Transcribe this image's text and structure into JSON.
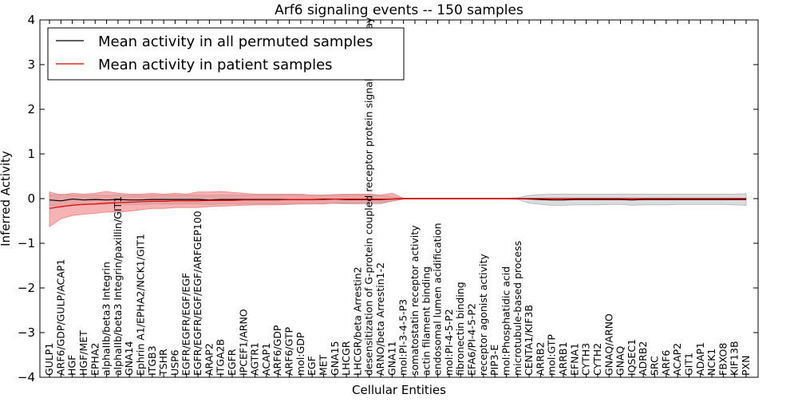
{
  "chart_data": {
    "type": "line",
    "title": "Arf6 signaling events -- 150 samples",
    "xlabel": "Cellular Entities",
    "ylabel": "Inferred Activity",
    "ylim": [
      -4,
      4
    ],
    "yticks": [
      -4,
      -3,
      -2,
      -1,
      0,
      1,
      2,
      3,
      4
    ],
    "ytick_labels": [
      "−4",
      "−3",
      "−2",
      "−1",
      "0",
      "1",
      "2",
      "3",
      "4"
    ],
    "grid": false,
    "legend_position": "top-left",
    "categories": [
      "GULP1",
      "ARF6/GDP/GULP/ACAP1",
      "HGF",
      "HGF/MET",
      "EPHA2",
      "alphaIIb/beta3 Integrin",
      "alphaIIb/beta3 Integrin/paxillin/GIT1",
      "GNA14",
      "Ephrin A1/EPHA2/NCK1/GIT1",
      "ITGB3",
      "TSHR",
      "USP6",
      "EGFR/EGFR/EGF/EGF",
      "EGFR/EGFR/EGF/EGF/ARFGEP100",
      "ARAP2",
      "ITGA2B",
      "EGFR",
      "IPCEF1/ARNO",
      "AGTR1",
      "ACAP1",
      "ARF6/GDP",
      "ARF6/GTP",
      "mol:GDP",
      "EGF",
      "MET",
      "GNA15",
      "LHCGR",
      "LHCGR/beta Arrestin2",
      "desensitization of G-protein coupled receptor protein signaling pathway",
      "ARNO/beta Arrestin1-2",
      "GNA11",
      "mol:PI-3-4-5-P3",
      "somatostatin receptor activity",
      "actin filament binding",
      "endosomal lumen acidification",
      "mol:PI-4-5-P2",
      "fibronectin binding",
      "EFA6/PI-4-5-P2",
      "receptor agonist activity",
      "PIP3-E",
      "mol:Phosphatidic acid",
      "microtubule-based process",
      "CENTA1/KIF3B",
      "ARRB2",
      "mol:GTP",
      "ARRB1",
      "EFNA1",
      "CYTH3",
      "CYTH2",
      "GNAQ/ARNO",
      "GNAQ",
      "IQSEC1",
      "ADRB2",
      "SRC",
      "ARF6",
      "ACAP2",
      "GIT1",
      "ADAP1",
      "NCK1",
      "FBXO8",
      "KIF13B",
      "PXN"
    ],
    "series": [
      {
        "name": "Mean activity in all permuted samples",
        "color": "#000000",
        "band_color": "#b0b0b0",
        "values": [
          -0.03,
          -0.05,
          -0.01,
          -0.03,
          -0.02,
          -0.03,
          -0.02,
          -0.03,
          -0.03,
          -0.02,
          -0.02,
          -0.02,
          -0.02,
          -0.02,
          -0.03,
          -0.02,
          -0.02,
          -0.02,
          -0.02,
          -0.02,
          -0.02,
          -0.02,
          -0.02,
          -0.02,
          -0.01,
          -0.01,
          -0.02,
          -0.02,
          -0.02,
          -0.02,
          -0.01,
          0.0,
          0.0,
          0.0,
          0.0,
          0.0,
          0.0,
          0.0,
          0.0,
          0.0,
          0.0,
          0.0,
          -0.01,
          -0.02,
          -0.03,
          -0.03,
          -0.02,
          -0.02,
          -0.02,
          -0.02,
          -0.02,
          -0.03,
          -0.02,
          -0.02,
          -0.02,
          -0.02,
          -0.02,
          -0.02,
          -0.02,
          -0.02,
          -0.02,
          -0.02
        ],
        "lower": [
          -0.14,
          -0.2,
          -0.12,
          -0.13,
          -0.13,
          -0.13,
          -0.12,
          -0.13,
          -0.13,
          -0.12,
          -0.12,
          -0.12,
          -0.12,
          -0.12,
          -0.13,
          -0.12,
          -0.12,
          -0.12,
          -0.12,
          -0.12,
          -0.12,
          -0.12,
          -0.12,
          -0.12,
          -0.11,
          -0.11,
          -0.12,
          -0.12,
          -0.12,
          -0.12,
          -0.05,
          -0.01,
          -0.01,
          -0.01,
          -0.01,
          -0.01,
          -0.01,
          -0.01,
          -0.01,
          -0.01,
          -0.01,
          -0.02,
          -0.1,
          -0.13,
          -0.15,
          -0.15,
          -0.14,
          -0.14,
          -0.14,
          -0.13,
          -0.13,
          -0.15,
          -0.14,
          -0.14,
          -0.14,
          -0.13,
          -0.13,
          -0.13,
          -0.13,
          -0.13,
          -0.14,
          -0.15
        ],
        "upper": [
          0.08,
          0.1,
          0.08,
          0.07,
          0.08,
          0.07,
          0.08,
          0.07,
          0.07,
          0.08,
          0.08,
          0.08,
          0.08,
          0.08,
          0.07,
          0.08,
          0.08,
          0.08,
          0.08,
          0.08,
          0.08,
          0.08,
          0.08,
          0.08,
          0.08,
          0.08,
          0.08,
          0.08,
          0.08,
          0.08,
          0.03,
          0.01,
          0.01,
          0.01,
          0.01,
          0.01,
          0.01,
          0.01,
          0.01,
          0.01,
          0.01,
          0.02,
          0.07,
          0.09,
          0.1,
          0.1,
          0.1,
          0.1,
          0.1,
          0.1,
          0.1,
          0.1,
          0.1,
          0.1,
          0.1,
          0.1,
          0.1,
          0.1,
          0.1,
          0.1,
          0.1,
          0.11
        ]
      },
      {
        "name": "Mean activity in patient samples",
        "color": "#e00000",
        "band_color": "#f08080",
        "values": [
          -0.22,
          -0.18,
          -0.15,
          -0.13,
          -0.12,
          -0.1,
          -0.09,
          -0.08,
          -0.07,
          -0.06,
          -0.06,
          -0.05,
          -0.05,
          -0.05,
          -0.04,
          -0.04,
          -0.04,
          -0.03,
          -0.03,
          -0.03,
          -0.03,
          -0.02,
          -0.02,
          -0.02,
          -0.02,
          -0.01,
          -0.01,
          -0.01,
          -0.01,
          -0.01,
          -0.01,
          0.0,
          0.0,
          0.0,
          0.0,
          0.0,
          0.0,
          0.0,
          0.0,
          0.0,
          0.0,
          0.0,
          0.0,
          0.0,
          0.0,
          0.0,
          0.0,
          0.0,
          0.0,
          0.0,
          0.0,
          0.0,
          0.0,
          0.0,
          0.0,
          0.0,
          0.0,
          0.0,
          0.0,
          0.0,
          0.0,
          0.0
        ],
        "lower": [
          -0.63,
          -0.45,
          -0.38,
          -0.35,
          -0.33,
          -0.3,
          -0.3,
          -0.28,
          -0.25,
          -0.22,
          -0.22,
          -0.2,
          -0.2,
          -0.2,
          -0.18,
          -0.17,
          -0.16,
          -0.15,
          -0.14,
          -0.14,
          -0.14,
          -0.13,
          -0.12,
          -0.12,
          -0.12,
          -0.1,
          -0.1,
          -0.1,
          -0.09,
          -0.09,
          -0.06,
          -0.01,
          -0.01,
          -0.01,
          -0.01,
          -0.01,
          -0.01,
          -0.01,
          -0.01,
          -0.01,
          -0.01,
          -0.01,
          -0.01,
          -0.01,
          -0.01,
          -0.01,
          -0.01,
          -0.01,
          -0.01,
          -0.01,
          -0.01,
          -0.01,
          -0.01,
          -0.01,
          -0.01,
          -0.01,
          -0.01,
          -0.01,
          -0.01,
          -0.01,
          -0.01,
          -0.01
        ],
        "upper": [
          0.15,
          0.08,
          0.12,
          0.1,
          0.12,
          0.16,
          0.12,
          0.1,
          0.1,
          0.12,
          0.1,
          0.12,
          0.1,
          0.15,
          0.15,
          0.16,
          0.14,
          0.12,
          0.1,
          0.1,
          0.1,
          0.1,
          0.1,
          0.08,
          0.08,
          0.09,
          0.1,
          0.1,
          0.1,
          0.08,
          0.12,
          0.01,
          0.01,
          0.01,
          0.01,
          0.01,
          0.01,
          0.01,
          0.01,
          0.01,
          0.01,
          0.01,
          0.01,
          0.01,
          0.01,
          0.01,
          0.01,
          0.01,
          0.01,
          0.01,
          0.01,
          0.01,
          0.01,
          0.01,
          0.01,
          0.01,
          0.01,
          0.01,
          0.01,
          0.01,
          0.01,
          0.01
        ]
      }
    ]
  }
}
